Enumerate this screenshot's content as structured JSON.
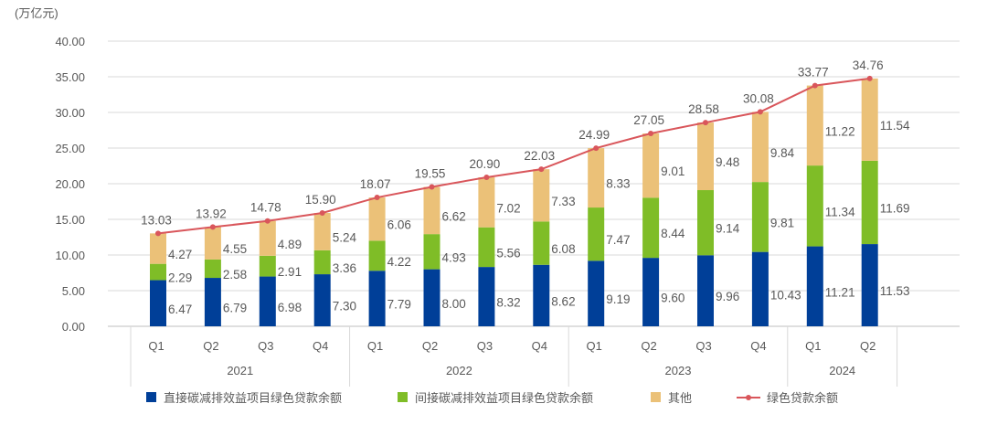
{
  "chart_data": {
    "type": "bar",
    "subtype": "stacked-bar-with-line",
    "ylabel": "(万亿元)",
    "ylim": [
      0,
      40
    ],
    "yticks": [
      "0.00",
      "5.00",
      "10.00",
      "15.00",
      "20.00",
      "25.00",
      "30.00",
      "35.00",
      "40.00"
    ],
    "grid": true,
    "legend_position": "bottom",
    "categories": [
      "Q1",
      "Q2",
      "Q3",
      "Q4",
      "Q1",
      "Q2",
      "Q3",
      "Q4",
      "Q1",
      "Q2",
      "Q3",
      "Q4",
      "Q1",
      "Q2"
    ],
    "groups": [
      {
        "label": "2021",
        "count": 4
      },
      {
        "label": "2022",
        "count": 4
      },
      {
        "label": "2023",
        "count": 4
      },
      {
        "label": "2024",
        "count": 2
      }
    ],
    "series": [
      {
        "name": "直接碳减排效益项目绿色贷款余额",
        "type": "bar",
        "color": "#003f98",
        "values": [
          6.47,
          6.79,
          6.98,
          7.3,
          7.79,
          8.0,
          8.32,
          8.62,
          9.19,
          9.6,
          9.96,
          10.43,
          11.21,
          11.53
        ]
      },
      {
        "name": "间接碳减排效益项目绿色贷款余额",
        "type": "bar",
        "color": "#7fbd27",
        "values": [
          2.29,
          2.58,
          2.91,
          3.36,
          4.22,
          4.93,
          5.56,
          6.08,
          7.47,
          8.44,
          9.14,
          9.81,
          11.34,
          11.69
        ]
      },
      {
        "name": "其他",
        "type": "bar",
        "color": "#ebc178",
        "values": [
          4.27,
          4.55,
          4.89,
          5.24,
          6.06,
          6.62,
          7.02,
          7.33,
          8.33,
          9.01,
          9.48,
          9.84,
          11.22,
          11.54
        ]
      },
      {
        "name": "绿色贷款余额",
        "type": "line",
        "color": "#d9565b",
        "values": [
          13.03,
          13.92,
          14.78,
          15.9,
          18.07,
          19.55,
          20.9,
          22.03,
          24.99,
          27.05,
          28.58,
          30.08,
          33.77,
          34.76
        ]
      }
    ]
  }
}
